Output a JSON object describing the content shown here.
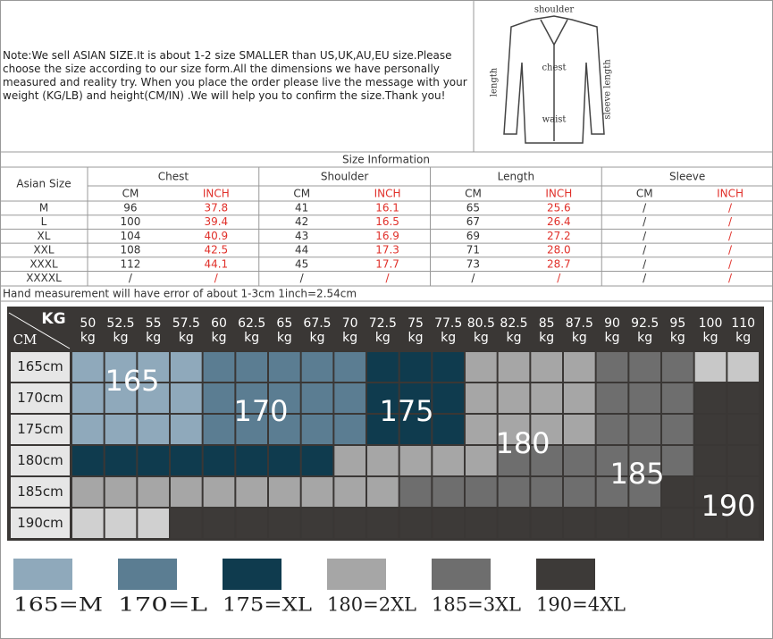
{
  "note": "Note:We sell ASIAN SIZE.It is about 1-2 size SMALLER than US,UK,AU,EU size.Please choose the size according to our size form.All the dimensions we have personally measured and reality try. When you place the order please live the message with your weight (KG/LB) and height(CM/IN) .We will help you to confirm the size.Thank you!",
  "diagram": {
    "shoulder": "shoulder",
    "chest": "chest",
    "length": "length",
    "sleeve": "sleeve length",
    "waist": "waist"
  },
  "table": {
    "title": "Size Information",
    "size_header": "Asian Size",
    "groups": [
      "Chest",
      "Shoulder",
      "Length",
      "Sleeve"
    ],
    "units": [
      "CM",
      "INCH"
    ],
    "rows": [
      [
        "M",
        "96",
        "37.8",
        "41",
        "16.1",
        "65",
        "25.6",
        "/",
        "/"
      ],
      [
        "L",
        "100",
        "39.4",
        "42",
        "16.5",
        "67",
        "26.4",
        "/",
        "/"
      ],
      [
        "XL",
        "104",
        "40.9",
        "43",
        "16.9",
        "69",
        "27.2",
        "/",
        "/"
      ],
      [
        "XXL",
        "108",
        "42.5",
        "44",
        "17.3",
        "71",
        "28.0",
        "/",
        "/"
      ],
      [
        "XXXL",
        "112",
        "44.1",
        "45",
        "17.7",
        "73",
        "28.7",
        "/",
        "/"
      ],
      [
        "XXXXL",
        "/",
        "/",
        "/",
        "/",
        "/",
        "/",
        "/",
        "/"
      ]
    ],
    "footer": "Hand measurement will have error of about 1-3cm     1inch=2.54cm"
  },
  "grid": {
    "kg_label": "KG",
    "cm_label": "CM",
    "unit": "kg",
    "weights": [
      "50",
      "52.5",
      "55",
      "57.5",
      "60",
      "62.5",
      "65",
      "67.5",
      "70",
      "72.5",
      "75",
      "77.5",
      "80.5",
      "82.5",
      "85",
      "87.5",
      "90",
      "92.5",
      "95",
      "100",
      "110"
    ],
    "heights": [
      "165cm",
      "170cm",
      "175cm",
      "180cm",
      "185cm",
      "190cm"
    ],
    "cells": [
      [
        "#8fa9bb",
        "#8fa9bb",
        "#8fa9bb",
        "#8fa9bb",
        "#5b7d92",
        "#5b7d92",
        "#5b7d92",
        "#5b7d92",
        "#5b7d92",
        "#0f3b4e",
        "#0f3b4e",
        "#0f3b4e",
        "#a6a6a6",
        "#a6a6a6",
        "#a6a6a6",
        "#a6a6a6",
        "#6e6e6e",
        "#6e6e6e",
        "#6e6e6e",
        "#c8c8c8",
        "#c8c8c8"
      ],
      [
        "#8fa9bb",
        "#8fa9bb",
        "#8fa9bb",
        "#8fa9bb",
        "#5b7d92",
        "#5b7d92",
        "#5b7d92",
        "#5b7d92",
        "#5b7d92",
        "#0f3b4e",
        "#0f3b4e",
        "#0f3b4e",
        "#a6a6a6",
        "#a6a6a6",
        "#a6a6a6",
        "#a6a6a6",
        "#6e6e6e",
        "#6e6e6e",
        "#6e6e6e",
        "#3d3a38",
        "#3d3a38"
      ],
      [
        "#8fa9bb",
        "#8fa9bb",
        "#8fa9bb",
        "#8fa9bb",
        "#5b7d92",
        "#5b7d92",
        "#5b7d92",
        "#5b7d92",
        "#5b7d92",
        "#0f3b4e",
        "#0f3b4e",
        "#0f3b4e",
        "#a6a6a6",
        "#a6a6a6",
        "#a6a6a6",
        "#a6a6a6",
        "#6e6e6e",
        "#6e6e6e",
        "#6e6e6e",
        "#3d3a38",
        "#3d3a38"
      ],
      [
        "#0f3b4e",
        "#0f3b4e",
        "#0f3b4e",
        "#0f3b4e",
        "#0f3b4e",
        "#0f3b4e",
        "#0f3b4e",
        "#0f3b4e",
        "#a6a6a6",
        "#a6a6a6",
        "#a6a6a6",
        "#a6a6a6",
        "#a6a6a6",
        "#6e6e6e",
        "#6e6e6e",
        "#6e6e6e",
        "#6e6e6e",
        "#6e6e6e",
        "#6e6e6e",
        "#3d3a38",
        "#3d3a38"
      ],
      [
        "#a6a6a6",
        "#a6a6a6",
        "#a6a6a6",
        "#a6a6a6",
        "#a6a6a6",
        "#a6a6a6",
        "#a6a6a6",
        "#a6a6a6",
        "#a6a6a6",
        "#a6a6a6",
        "#6e6e6e",
        "#6e6e6e",
        "#6e6e6e",
        "#6e6e6e",
        "#6e6e6e",
        "#6e6e6e",
        "#6e6e6e",
        "#6e6e6e",
        "#3d3a38",
        "#3d3a38",
        "#3d3a38"
      ],
      [
        "#d0d0d0",
        "#d0d0d0",
        "#d0d0d0",
        "#3d3a38",
        "#3d3a38",
        "#3d3a38",
        "#3d3a38",
        "#3d3a38",
        "#3d3a38",
        "#3d3a38",
        "#3d3a38",
        "#3d3a38",
        "#3d3a38",
        "#3d3a38",
        "#3d3a38",
        "#3d3a38",
        "#3d3a38",
        "#3d3a38",
        "#3d3a38",
        "#3d3a38",
        "#3d3a38"
      ]
    ],
    "zone_labels": [
      "165",
      "170",
      "175",
      "180",
      "185",
      "190"
    ]
  },
  "legend": [
    {
      "label": "165=M",
      "color": "#8fa9bb"
    },
    {
      "label": "170=L",
      "color": "#5b7d92"
    },
    {
      "label": "175=XL",
      "color": "#0f3b4e"
    },
    {
      "label": "180=2XL",
      "color": "#a6a6a6"
    },
    {
      "label": "185=3XL",
      "color": "#6e6e6e"
    },
    {
      "label": "190=4XL",
      "color": "#3d3a38"
    }
  ]
}
